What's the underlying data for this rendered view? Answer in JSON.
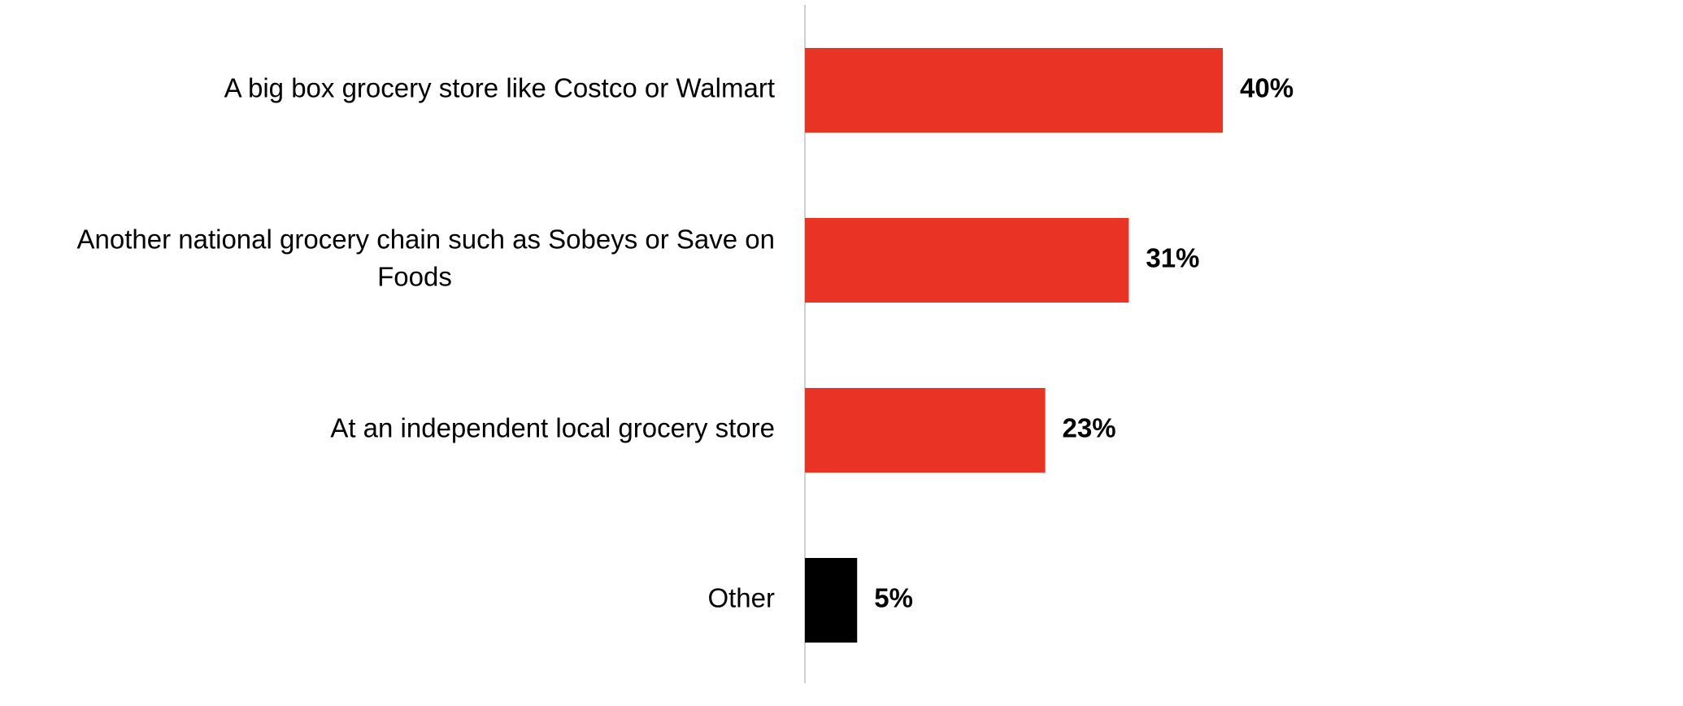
{
  "chart_data": {
    "type": "bar",
    "orientation": "horizontal",
    "categories": [
      [
        "A big box grocery store like Costco or Walmart"
      ],
      [
        "Another national grocery chain such as Sobeys or Save on",
        "Foods"
      ],
      [
        "At an independent local grocery store"
      ],
      [
        "Other"
      ]
    ],
    "values": [
      40,
      31,
      23,
      5
    ],
    "data_labels": [
      "40%",
      "31%",
      "23%",
      "5%"
    ],
    "bar_colors": [
      "#E93324",
      "#E93324",
      "#E93324",
      "#000000"
    ],
    "title": "",
    "xlabel": "",
    "ylabel": "",
    "xlim": [
      0,
      100
    ],
    "grid": false,
    "legend": "none",
    "axis_color": "#D0D0D0"
  }
}
